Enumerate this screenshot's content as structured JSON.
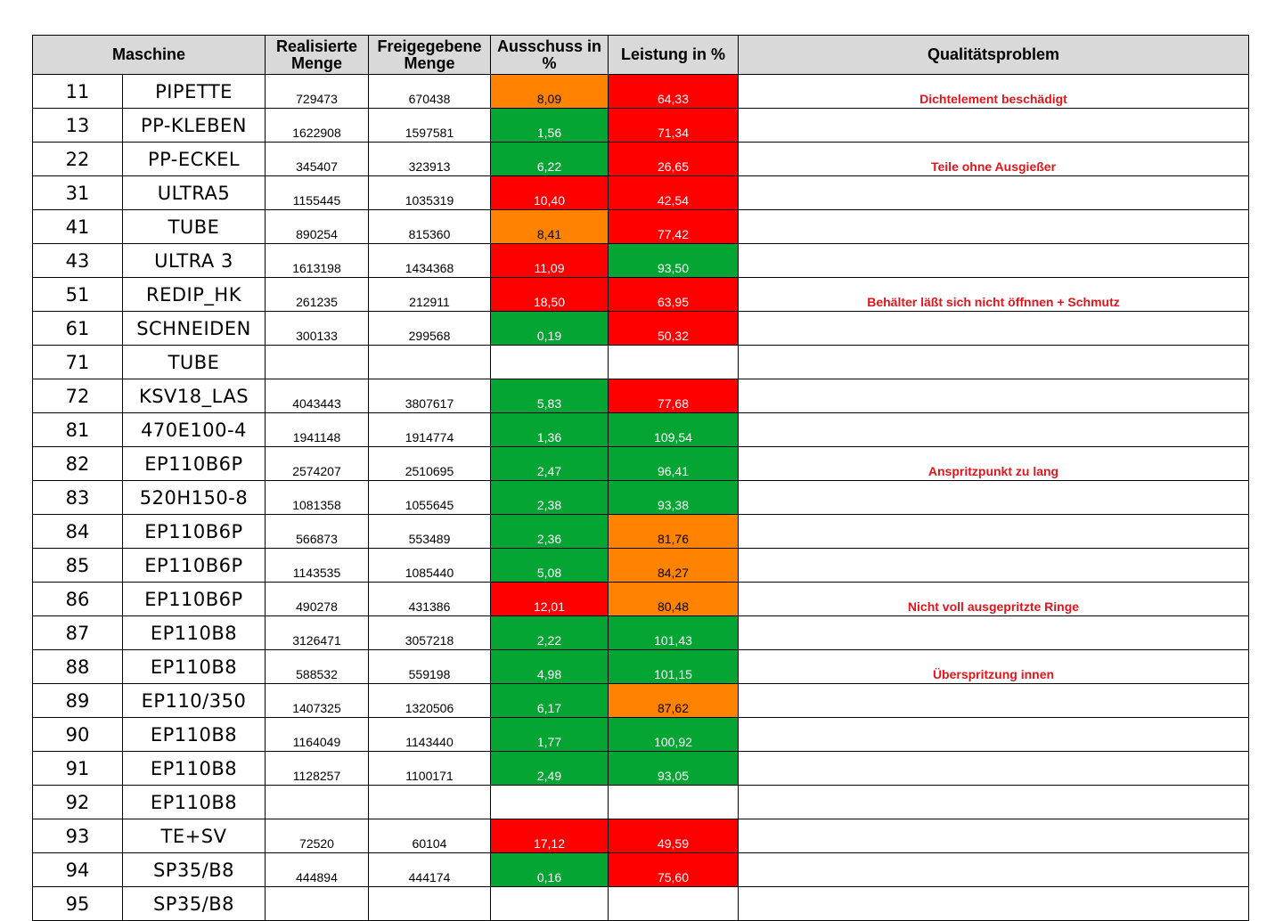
{
  "headers": {
    "maschine": "Maschine",
    "realisierte": "Realisierte Menge",
    "freigegebene": "Freigegebene Menge",
    "ausschuss": "Ausschuss in %",
    "leistung": "Leistung in %",
    "problem": "Qualitätsproblem"
  },
  "colors": {
    "green": "#05a533",
    "red": "#fc0000",
    "orange": "#ff8200",
    "header": "#d9d9d9",
    "problem_text": "#e0161d"
  },
  "rows": [
    {
      "nr": "11",
      "name": "PIPETTE",
      "real": "729473",
      "frei": "670438",
      "aus": "8,09",
      "aus_color": "orange",
      "leist": "64,33",
      "leist_color": "red",
      "problem": "Dichtelement beschädigt"
    },
    {
      "nr": "13",
      "name": "PP-KLEBEN",
      "real": "1622908",
      "frei": "1597581",
      "aus": "1,56",
      "aus_color": "green",
      "leist": "71,34",
      "leist_color": "red",
      "problem": ""
    },
    {
      "nr": "22",
      "name": "PP-ECKEL",
      "real": "345407",
      "frei": "323913",
      "aus": "6,22",
      "aus_color": "green",
      "leist": "26,65",
      "leist_color": "red",
      "problem": "Teile ohne Ausgießer"
    },
    {
      "nr": "31",
      "name": "ULTRA5",
      "real": "1155445",
      "frei": "1035319",
      "aus": "10,40",
      "aus_color": "red",
      "leist": "42,54",
      "leist_color": "red",
      "problem": ""
    },
    {
      "nr": "41",
      "name": "TUBE",
      "real": "890254",
      "frei": "815360",
      "aus": "8,41",
      "aus_color": "orange",
      "leist": "77,42",
      "leist_color": "red",
      "problem": ""
    },
    {
      "nr": "43",
      "name": "ULTRA 3",
      "real": "1613198",
      "frei": "1434368",
      "aus": "11,09",
      "aus_color": "red",
      "leist": "93,50",
      "leist_color": "green",
      "problem": ""
    },
    {
      "nr": "51",
      "name": "REDIP_HK",
      "real": "261235",
      "frei": "212911",
      "aus": "18,50",
      "aus_color": "red",
      "leist": "63,95",
      "leist_color": "red",
      "problem": "Behälter läßt sich nicht öffnnen + Schmutz"
    },
    {
      "nr": "61",
      "name": "SCHNEIDEN",
      "real": "300133",
      "frei": "299568",
      "aus": "0,19",
      "aus_color": "green",
      "leist": "50,32",
      "leist_color": "red",
      "problem": ""
    },
    {
      "nr": "71",
      "name": "TUBE",
      "real": "",
      "frei": "",
      "aus": "",
      "aus_color": "none",
      "leist": "",
      "leist_color": "none",
      "problem": ""
    },
    {
      "nr": "72",
      "name": "KSV18_LAS",
      "real": "4043443",
      "frei": "3807617",
      "aus": "5,83",
      "aus_color": "green",
      "leist": "77,68",
      "leist_color": "red",
      "problem": ""
    },
    {
      "nr": "81",
      "name": "470E100-4",
      "real": "1941148",
      "frei": "1914774",
      "aus": "1,36",
      "aus_color": "green",
      "leist": "109,54",
      "leist_color": "green",
      "problem": ""
    },
    {
      "nr": "82",
      "name": "EP110B6P",
      "real": "2574207",
      "frei": "2510695",
      "aus": "2,47",
      "aus_color": "green",
      "leist": "96,41",
      "leist_color": "green",
      "problem": "Anspritzpunkt zu lang"
    },
    {
      "nr": "83",
      "name": "520H150-8",
      "real": "1081358",
      "frei": "1055645",
      "aus": "2,38",
      "aus_color": "green",
      "leist": "93,38",
      "leist_color": "green",
      "problem": ""
    },
    {
      "nr": "84",
      "name": "EP110B6P",
      "real": "566873",
      "frei": "553489",
      "aus": "2,36",
      "aus_color": "green",
      "leist": "81,76",
      "leist_color": "orange",
      "problem": ""
    },
    {
      "nr": "85",
      "name": "EP110B6P",
      "real": "1143535",
      "frei": "1085440",
      "aus": "5,08",
      "aus_color": "green",
      "leist": "84,27",
      "leist_color": "orange",
      "problem": ""
    },
    {
      "nr": "86",
      "name": "EP110B6P",
      "real": "490278",
      "frei": "431386",
      "aus": "12,01",
      "aus_color": "red",
      "leist": "80,48",
      "leist_color": "orange",
      "problem": "Nicht voll ausgepritzte Ringe"
    },
    {
      "nr": "87",
      "name": "EP110B8",
      "real": "3126471",
      "frei": "3057218",
      "aus": "2,22",
      "aus_color": "green",
      "leist": "101,43",
      "leist_color": "green",
      "problem": ""
    },
    {
      "nr": "88",
      "name": "EP110B8",
      "real": "588532",
      "frei": "559198",
      "aus": "4,98",
      "aus_color": "green",
      "leist": "101,15",
      "leist_color": "green",
      "problem": "Überspritzung innen"
    },
    {
      "nr": "89",
      "name": "EP110/350",
      "real": "1407325",
      "frei": "1320506",
      "aus": "6,17",
      "aus_color": "green",
      "leist": "87,62",
      "leist_color": "orange",
      "problem": ""
    },
    {
      "nr": "90",
      "name": "EP110B8",
      "real": "1164049",
      "frei": "1143440",
      "aus": "1,77",
      "aus_color": "green",
      "leist": "100,92",
      "leist_color": "green",
      "problem": ""
    },
    {
      "nr": "91",
      "name": "EP110B8",
      "real": "1128257",
      "frei": "1100171",
      "aus": "2,49",
      "aus_color": "green",
      "leist": "93,05",
      "leist_color": "green",
      "problem": ""
    },
    {
      "nr": "92",
      "name": "EP110B8",
      "real": "",
      "frei": "",
      "aus": "",
      "aus_color": "none",
      "leist": "",
      "leist_color": "none",
      "problem": ""
    },
    {
      "nr": "93",
      "name": "TE+SV",
      "real": "72520",
      "frei": "60104",
      "aus": "17,12",
      "aus_color": "red",
      "leist": "49,59",
      "leist_color": "red",
      "problem": ""
    },
    {
      "nr": "94",
      "name": "SP35/B8",
      "real": "444894",
      "frei": "444174",
      "aus": "0,16",
      "aus_color": "green",
      "leist": "75,60",
      "leist_color": "red",
      "problem": ""
    },
    {
      "nr": "95",
      "name": "SP35/B8",
      "real": "",
      "frei": "",
      "aus": "",
      "aus_color": "none",
      "leist": "",
      "leist_color": "none",
      "problem": ""
    }
  ]
}
